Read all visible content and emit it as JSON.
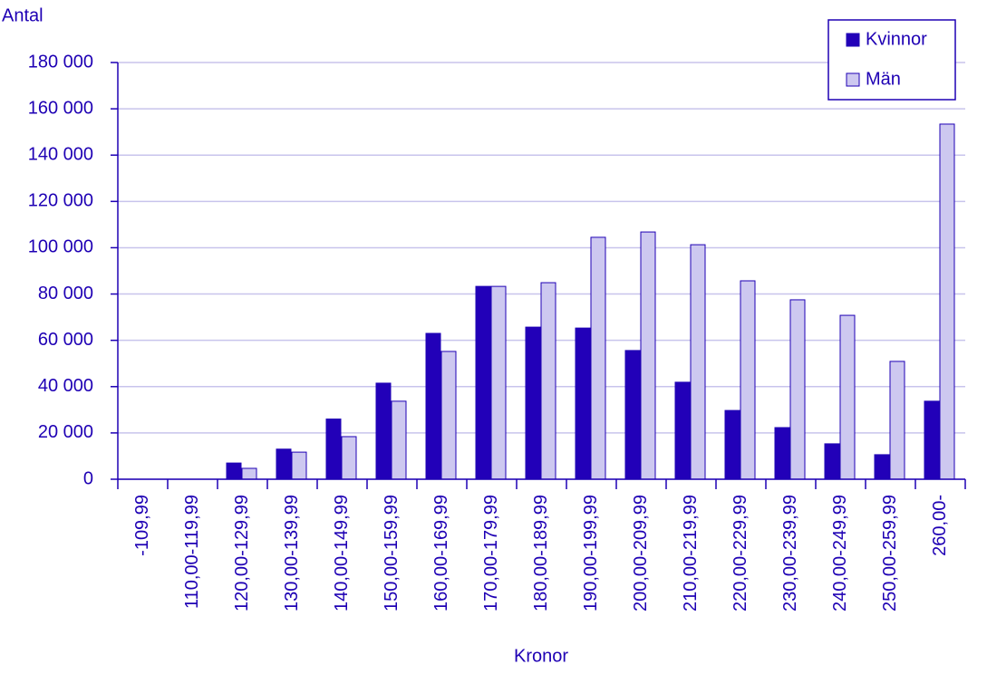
{
  "chart_data": {
    "type": "bar",
    "y_axis_label": "Antal",
    "x_axis_label": "Kronor",
    "categories": [
      "-109,99",
      "110,00-119,99",
      "120,00-129,99",
      "130,00-139,99",
      "140,00-149,99",
      "150,00-159,99",
      "160,00-169,99",
      "170,00-179,99",
      "180,00-189,99",
      "190,00-199,99",
      "200,00-209,99",
      "210,00-219,99",
      "220,00-229,99",
      "230,00-239,99",
      "240,00-249,99",
      "250,00-259,99",
      "260,00-"
    ],
    "series": [
      {
        "name": "Kvinnor",
        "color": "#2200b8",
        "values": [
          0,
          0,
          7000,
          13000,
          26000,
          41500,
          63000,
          83300,
          65700,
          65300,
          55600,
          41900,
          29700,
          22300,
          15300,
          10600,
          33700
        ]
      },
      {
        "name": "Män",
        "color": "#cdc8f0",
        "values": [
          0,
          0,
          4700,
          11700,
          18400,
          33700,
          55200,
          83300,
          84900,
          104500,
          106800,
          101300,
          85700,
          77500,
          70800,
          50900,
          153400
        ]
      }
    ],
    "ylim": [
      0,
      180000
    ],
    "yticks": [
      0,
      {
        "value": 20000,
        "label": "20 000"
      },
      {
        "value": 40000,
        "label": "40 000"
      },
      {
        "value": 60000,
        "label": "60 000"
      },
      {
        "value": 80000,
        "label": "80 000"
      },
      {
        "value": 100000,
        "label": "100 000"
      },
      {
        "value": 120000,
        "label": "120 000"
      },
      {
        "value": 140000,
        "label": "140 000"
      },
      {
        "value": 160000,
        "label": "160 000"
      },
      {
        "value": 180000,
        "label": "180 000"
      }
    ],
    "grid": true,
    "legend": "top-right"
  }
}
